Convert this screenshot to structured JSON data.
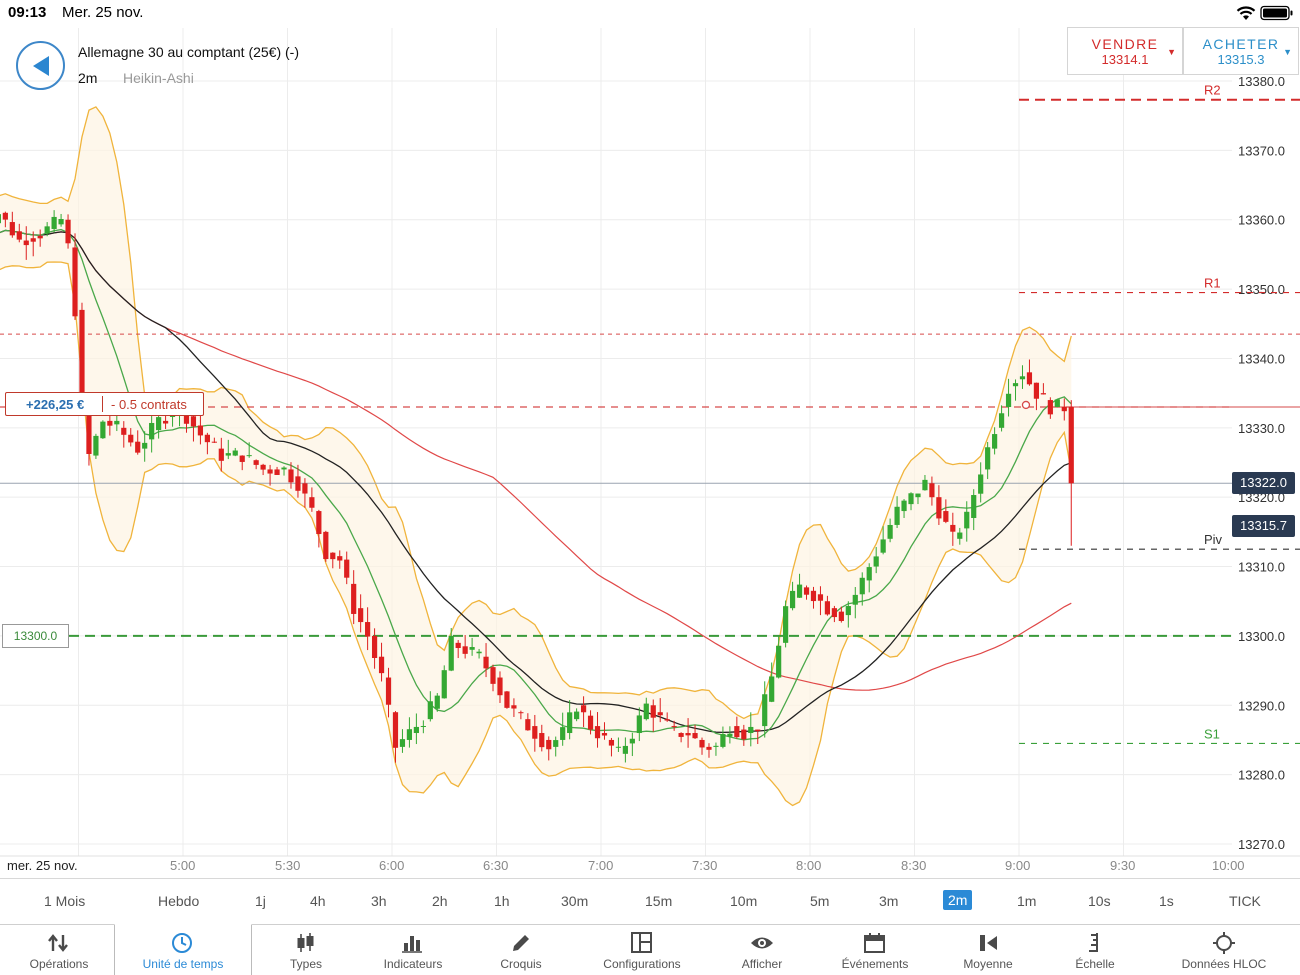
{
  "status": {
    "time": "09:13",
    "date": "Mer. 25 nov."
  },
  "header": {
    "instrument": "Allemagne 30 au comptant (25€) (-)",
    "timeframe": "2m",
    "chart_type": "Heikin-Ashi",
    "sell": {
      "label": "VENDRE",
      "price": "13314.1"
    },
    "buy": {
      "label": "ACHETER",
      "price": "13315.3"
    }
  },
  "position": {
    "pnl": "+226,25 €",
    "contracts": "- 0.5 contrats"
  },
  "order_level": "13300.0",
  "price_tags": {
    "last": "13322.0",
    "bid": "13315.7"
  },
  "chart_data": {
    "type": "candlestick",
    "y_axis_labels": [
      "13380.0",
      "13370.0",
      "13360.0",
      "13350.0",
      "13340.0",
      "13330.0",
      "13320.0",
      "13310.0",
      "13300.0",
      "13290.0",
      "13280.0",
      "13270.0"
    ],
    "ylim": [
      13268,
      13382
    ],
    "x_axis_labels": [
      "mer. 25 nov.",
      "5:00",
      "5:30",
      "6:00",
      "6:30",
      "7:00",
      "7:30",
      "8:00",
      "8:30",
      "9:00",
      "9:30",
      "10:00"
    ],
    "pivot_levels": [
      {
        "name": "R2",
        "value": 13377.3,
        "color": "#d32b2b"
      },
      {
        "name": "R1",
        "value": 13349.5,
        "color": "#d32b2b"
      },
      {
        "name": "Piv",
        "value": 13312.5,
        "color": "#333333"
      },
      {
        "name": "S1",
        "value": 13284.5,
        "color": "#3aa03a"
      }
    ],
    "position_open_level": 13333.0,
    "current_price_level": 13322.0,
    "up_color": "#34a833",
    "down_color": "#dd1f1f"
  },
  "timeframes": [
    {
      "id": "1M",
      "label": "1 Mois"
    },
    {
      "id": "W",
      "label": "Hebdo"
    },
    {
      "id": "1j",
      "label": "1j"
    },
    {
      "id": "4h",
      "label": "4h"
    },
    {
      "id": "3h",
      "label": "3h"
    },
    {
      "id": "2h",
      "label": "2h"
    },
    {
      "id": "1h",
      "label": "1h"
    },
    {
      "id": "30m",
      "label": "30m"
    },
    {
      "id": "15m",
      "label": "15m"
    },
    {
      "id": "10m",
      "label": "10m"
    },
    {
      "id": "5m",
      "label": "5m"
    },
    {
      "id": "3m",
      "label": "3m"
    },
    {
      "id": "2m",
      "label": "2m"
    },
    {
      "id": "1m",
      "label": "1m"
    },
    {
      "id": "10s",
      "label": "10s"
    },
    {
      "id": "1s",
      "label": "1s"
    },
    {
      "id": "TICK",
      "label": "TICK"
    }
  ],
  "active_timeframe": "2m",
  "toolbar": [
    {
      "label": "Opérations",
      "icon": "arrows-updown-icon"
    },
    {
      "label": "Unité de temps",
      "icon": "clock-icon"
    },
    {
      "label": "Types",
      "icon": "candles-icon"
    },
    {
      "label": "Indicateurs",
      "icon": "bars-icon"
    },
    {
      "label": "Croquis",
      "icon": "pencil-icon"
    },
    {
      "label": "Configurations",
      "icon": "layout-icon"
    },
    {
      "label": "Afficher",
      "icon": "eye-icon"
    },
    {
      "label": "Événements",
      "icon": "calendar-icon"
    },
    {
      "label": "Moyenne",
      "icon": "average-icon"
    },
    {
      "label": "Échelle",
      "icon": "scale-icon"
    },
    {
      "label": "Données HLOC",
      "icon": "crosshair-icon"
    }
  ],
  "active_tool": "Unité de temps"
}
